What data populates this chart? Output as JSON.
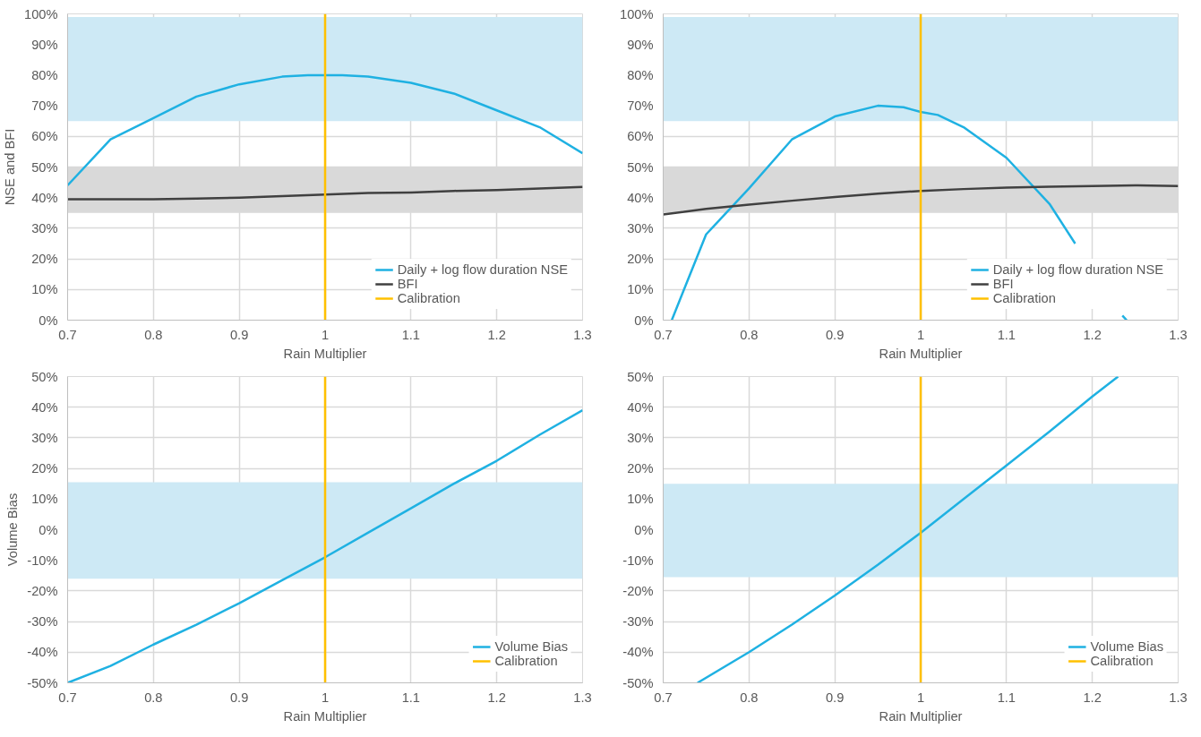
{
  "chart_data": [
    {
      "type": "line",
      "xlabel": "Rain Multiplier",
      "ylabel": "NSE and BFI",
      "xlim": [
        0.7,
        1.3
      ],
      "ylim": [
        0,
        100
      ],
      "xticks": [
        0.7,
        0.8,
        0.9,
        1,
        1.1,
        1.2,
        1.3
      ],
      "yticks": [
        {
          "value": 0,
          "label": "0%"
        },
        {
          "value": 10,
          "label": "10%"
        },
        {
          "value": 20,
          "label": "20%"
        },
        {
          "value": 30,
          "label": "30%"
        },
        {
          "value": 40,
          "label": "40%"
        },
        {
          "value": 50,
          "label": "50%"
        },
        {
          "value": 60,
          "label": "60%"
        },
        {
          "value": 70,
          "label": "70%"
        },
        {
          "value": 80,
          "label": "80%"
        },
        {
          "value": 90,
          "label": "90%"
        },
        {
          "value": 100,
          "label": "100%"
        }
      ],
      "series": [
        {
          "name": "Daily + log flow duration NSE",
          "color": "#1fb1e2",
          "x": [
            0.7,
            0.75,
            0.8,
            0.85,
            0.9,
            0.95,
            0.98,
            1.0,
            1.02,
            1.05,
            1.1,
            1.15,
            1.2,
            1.25,
            1.3
          ],
          "values": [
            44,
            59,
            66,
            73,
            77,
            79.5,
            80,
            80,
            80,
            79.5,
            77.5,
            74,
            68.5,
            63,
            54.5
          ]
        },
        {
          "name": "BFI",
          "color": "#404040",
          "x": [
            0.7,
            0.8,
            0.85,
            0.9,
            0.95,
            1.0,
            1.05,
            1.1,
            1.15,
            1.2,
            1.25,
            1.3
          ],
          "values": [
            39.5,
            39.5,
            39.7,
            40,
            40.5,
            41,
            41.5,
            41.7,
            42.2,
            42.5,
            43,
            43.5
          ]
        },
        {
          "name": "Calibration",
          "color": "#ffc000",
          "x": [
            1,
            1
          ],
          "values": [
            0,
            100
          ]
        }
      ],
      "bands": [
        {
          "axis": "y",
          "from": 65,
          "to": 99,
          "color": "#cde9f5"
        },
        {
          "axis": "y",
          "from": 35,
          "to": 50,
          "color": "#d9d9d9"
        }
      ],
      "grid": true,
      "legend": "bottom right"
    },
    {
      "type": "line",
      "xlabel": "Rain Multiplier",
      "xlim": [
        0.7,
        1.3
      ],
      "ylim": [
        0,
        100
      ],
      "xticks": [
        0.7,
        0.8,
        0.9,
        1,
        1.1,
        1.2,
        1.3
      ],
      "yticks": [
        {
          "value": 0,
          "label": "0%"
        },
        {
          "value": 10,
          "label": "10%"
        },
        {
          "value": 20,
          "label": "20%"
        },
        {
          "value": 30,
          "label": "30%"
        },
        {
          "value": 40,
          "label": "40%"
        },
        {
          "value": 50,
          "label": "50%"
        },
        {
          "value": 60,
          "label": "60%"
        },
        {
          "value": 70,
          "label": "70%"
        },
        {
          "value": 80,
          "label": "80%"
        },
        {
          "value": 90,
          "label": "90%"
        },
        {
          "value": 100,
          "label": "100%"
        }
      ],
      "series": [
        {
          "name": "Daily + log flow duration NSE",
          "color": "#1fb1e2",
          "x": [
            0.71,
            0.75,
            0.8,
            0.85,
            0.9,
            0.95,
            0.98,
            1.0,
            1.02,
            1.05,
            1.1,
            1.15,
            1.18,
            1.2,
            1.235,
            1.24
          ],
          "values": [
            0,
            28,
            43,
            59,
            66.5,
            70,
            69.5,
            68,
            67,
            63,
            53,
            38,
            25,
            null,
            1.5,
            0
          ]
        },
        {
          "name": "BFI",
          "color": "#404040",
          "x": [
            0.7,
            0.75,
            0.8,
            0.85,
            0.9,
            0.95,
            1.0,
            1.05,
            1.1,
            1.15,
            1.2,
            1.25,
            1.3
          ],
          "values": [
            34.5,
            36.3,
            37.7,
            39,
            40.2,
            41.3,
            42.2,
            42.8,
            43.3,
            43.6,
            43.8,
            44,
            43.8
          ]
        },
        {
          "name": "Calibration",
          "color": "#ffc000",
          "x": [
            1,
            1
          ],
          "values": [
            0,
            100
          ]
        }
      ],
      "bands": [
        {
          "axis": "y",
          "from": 65,
          "to": 99,
          "color": "#cde9f5"
        },
        {
          "axis": "y",
          "from": 35,
          "to": 50,
          "color": "#d9d9d9"
        }
      ],
      "grid": true,
      "legend": "bottom right"
    },
    {
      "type": "line",
      "xlabel": "Rain Multiplier",
      "ylabel": "Volume Bias",
      "xlim": [
        0.7,
        1.3
      ],
      "ylim": [
        -50,
        50
      ],
      "xticks": [
        0.7,
        0.8,
        0.9,
        1,
        1.1,
        1.2,
        1.3
      ],
      "yticks": [
        {
          "value": -50,
          "label": "-50%"
        },
        {
          "value": -40,
          "label": "-40%"
        },
        {
          "value": -30,
          "label": "-30%"
        },
        {
          "value": -20,
          "label": "-20%"
        },
        {
          "value": -10,
          "label": "-10%"
        },
        {
          "value": 0,
          "label": "0%"
        },
        {
          "value": 10,
          "label": "10%"
        },
        {
          "value": 20,
          "label": "20%"
        },
        {
          "value": 30,
          "label": "30%"
        },
        {
          "value": 40,
          "label": "40%"
        },
        {
          "value": 50,
          "label": "50%"
        }
      ],
      "series": [
        {
          "name": "Volume Bias",
          "color": "#1fb1e2",
          "x": [
            0.7,
            0.75,
            0.8,
            0.85,
            0.9,
            0.95,
            1.0,
            1.05,
            1.1,
            1.15,
            1.2,
            1.25,
            1.3
          ],
          "values": [
            -50,
            -44.5,
            -37.5,
            -31,
            -24,
            -16.5,
            -9,
            -1,
            7,
            15,
            22.5,
            31,
            39
          ]
        },
        {
          "name": "Calibration",
          "color": "#ffc000",
          "x": [
            1,
            1
          ],
          "values": [
            -50,
            50
          ]
        }
      ],
      "bands": [
        {
          "axis": "y",
          "from": -16,
          "to": 15.5,
          "color": "#cde9f5"
        }
      ],
      "grid": true,
      "legend": "bottom right"
    },
    {
      "type": "line",
      "xlabel": "Rain Multiplier",
      "xlim": [
        0.7,
        1.3
      ],
      "ylim": [
        -50,
        50
      ],
      "xticks": [
        0.7,
        0.8,
        0.9,
        1,
        1.1,
        1.2,
        1.3
      ],
      "yticks": [
        {
          "value": -50,
          "label": "-50%"
        },
        {
          "value": -40,
          "label": "-40%"
        },
        {
          "value": -30,
          "label": "-30%"
        },
        {
          "value": -20,
          "label": "-20%"
        },
        {
          "value": -10,
          "label": "-10%"
        },
        {
          "value": 0,
          "label": "0%"
        },
        {
          "value": 10,
          "label": "10%"
        },
        {
          "value": 20,
          "label": "20%"
        },
        {
          "value": 30,
          "label": "30%"
        },
        {
          "value": 40,
          "label": "40%"
        },
        {
          "value": 50,
          "label": "50%"
        }
      ],
      "series": [
        {
          "name": "Volume Bias",
          "color": "#1fb1e2",
          "x": [
            0.74,
            0.8,
            0.85,
            0.9,
            0.95,
            1.0,
            1.05,
            1.1,
            1.15,
            1.2,
            1.23
          ],
          "values": [
            -50,
            -40,
            -31,
            -21.5,
            -11.5,
            -1,
            10,
            21,
            32,
            43.5,
            50
          ]
        },
        {
          "name": "Calibration",
          "color": "#ffc000",
          "x": [
            1,
            1
          ],
          "values": [
            -50,
            50
          ]
        }
      ],
      "bands": [
        {
          "axis": "y",
          "from": -15.5,
          "to": 15,
          "color": "#cde9f5"
        }
      ],
      "grid": true,
      "legend": "bottom right"
    }
  ]
}
